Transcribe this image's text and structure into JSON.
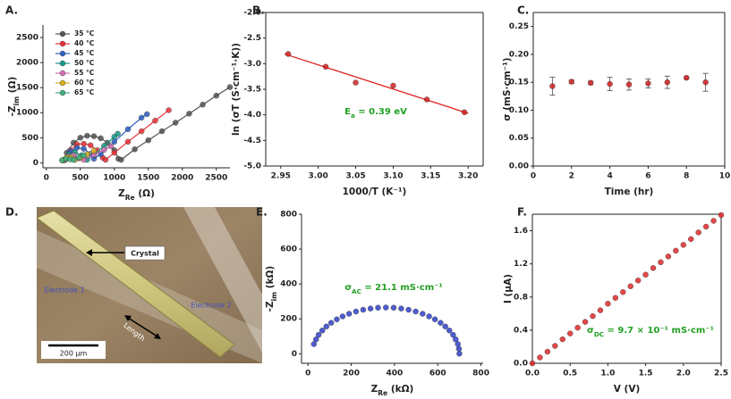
{
  "chart_data": [
    {
      "panel": "A.",
      "type": "line",
      "xlabel": [
        "Z",
        "Re",
        " (Ω)"
      ],
      "ylabel": [
        "-Z",
        "im",
        " (Ω)"
      ],
      "xlim": [
        -50,
        2700
      ],
      "ylim": [
        -100,
        2750
      ],
      "xticks": [
        0,
        500,
        1000,
        1500,
        2000,
        2500
      ],
      "yticks": [
        0,
        500,
        1000,
        1500,
        2000,
        2500
      ],
      "frame": "open",
      "legend": "upper left",
      "series": [
        {
          "name": "35 °C",
          "color": "#555555",
          "x": [
            260,
            300,
            400,
            500,
            600,
            700,
            800,
            900,
            1000,
            1060,
            1100,
            1300,
            1500,
            1700,
            1900,
            2100,
            2300,
            2500,
            2700
          ],
          "values": [
            60,
            200,
            400,
            500,
            540,
            530,
            490,
            400,
            250,
            80,
            60,
            270,
            450,
            630,
            800,
            980,
            1160,
            1340,
            1510
          ]
        },
        {
          "name": "40 °C",
          "color": "#e8333a",
          "x": [
            280,
            350,
            450,
            550,
            650,
            750,
            830,
            870,
            1000,
            1200,
            1400,
            1600,
            1800
          ],
          "values": [
            60,
            250,
            370,
            380,
            350,
            250,
            100,
            60,
            200,
            420,
            630,
            840,
            1050
          ]
        },
        {
          "name": "45 °C",
          "color": "#3060c0",
          "x": [
            270,
            350,
            450,
            550,
            650,
            700,
            800,
            1000,
            1200,
            1400,
            1480
          ],
          "values": [
            60,
            230,
            300,
            280,
            180,
            80,
            170,
            420,
            670,
            900,
            970
          ]
        },
        {
          "name": "50 °C",
          "color": "#1a9a8a",
          "x": [
            260,
            330,
            420,
            520,
            600,
            700,
            850,
            1000,
            1050
          ],
          "values": [
            50,
            170,
            210,
            150,
            60,
            160,
            340,
            520,
            580
          ]
        },
        {
          "name": "55 °C",
          "color": "#d070b0",
          "x": [
            250,
            320,
            400,
            480,
            550,
            700,
            850,
            950
          ],
          "values": [
            50,
            130,
            150,
            90,
            60,
            160,
            260,
            330
          ]
        },
        {
          "name": "60 °C",
          "color": "#d4b020",
          "x": [
            240,
            300,
            360,
            420,
            500,
            600,
            700
          ],
          "values": [
            50,
            110,
            110,
            60,
            100,
            170,
            240
          ]
        },
        {
          "name": "65 °C",
          "color": "#40b080",
          "x": [
            230,
            290,
            350,
            400,
            480,
            550
          ],
          "values": [
            50,
            80,
            70,
            60,
            110,
            150
          ]
        }
      ]
    },
    {
      "panel": "B.",
      "type": "scatter",
      "xlabel": "1000/T (K⁻¹)",
      "ylabel": "ln (σT (S·cm⁻¹·K))",
      "xlim": [
        2.93,
        3.22
      ],
      "ylim": [
        -5,
        -2
      ],
      "xticks": [
        2.95,
        {
          "value": 3,
          "label": "3.00"
        },
        3.05,
        {
          "value": 3.1,
          "label": "3.10"
        },
        3.15,
        {
          "value": 3.2,
          "label": "3.20"
        }
      ],
      "yticks": [
        {
          "value": -2,
          "label": "-2.0"
        },
        -2.5,
        {
          "value": -3,
          "label": "-3.0"
        },
        -3.5,
        {
          "value": -4,
          "label": "-4.0"
        },
        -4.5,
        {
          "value": -5,
          "label": "-5.0"
        }
      ],
      "frame": "box",
      "annotation": [
        "E",
        "a",
        " = 0.39 eV"
      ],
      "annotation_color": "#22a022",
      "fit": {
        "color": "#e02020",
        "x": [
          2.955,
          3.2
        ],
        "values": [
          -2.81,
          -3.97
        ]
      },
      "series": [
        {
          "color": "#d02020",
          "x": [
            2.96,
            3.01,
            3.05,
            3.1,
            3.145,
            3.195
          ],
          "values": [
            -2.81,
            -3.06,
            -3.37,
            -3.43,
            -3.7,
            -3.95
          ]
        }
      ]
    },
    {
      "panel": "C.",
      "type": "scatter",
      "xlabel": "Time (hr)",
      "ylabel": "σ (mS·cm⁻¹)",
      "xlim": [
        0,
        10
      ],
      "ylim": [
        0,
        0.275
      ],
      "xticks": [
        0,
        2,
        4,
        6,
        8,
        10
      ],
      "yticks": [
        {
          "value": 0,
          "label": "0.00"
        },
        0.05,
        {
          "value": 0.1,
          "label": "0.10"
        },
        0.15,
        {
          "value": 0.2,
          "label": "0.20"
        },
        0.25
      ],
      "frame": "box",
      "series": [
        {
          "color": "#d02020",
          "x": [
            1,
            2,
            3,
            4,
            5,
            6,
            7,
            8,
            9
          ],
          "values": [
            0.143,
            0.151,
            0.149,
            0.147,
            0.146,
            0.148,
            0.15,
            0.158,
            0.15
          ],
          "errors": [
            0.016,
            0.003,
            0.003,
            0.012,
            0.01,
            0.008,
            0.011,
            0.002,
            0.016
          ]
        }
      ]
    },
    {
      "panel": "E.",
      "type": "scatter",
      "xlabel": [
        "Z",
        "Re",
        " (kΩ)"
      ],
      "ylabel": [
        "-Z",
        "im",
        " (kΩ)"
      ],
      "xlim": [
        -30,
        810
      ],
      "ylim": [
        -55,
        800
      ],
      "xticks": [
        0,
        200,
        400,
        600,
        800
      ],
      "yticks": [
        0,
        200,
        400,
        600,
        800
      ],
      "frame": "open",
      "annotation": [
        "σ",
        "AC",
        " = 21.1 mS·cm⁻¹"
      ],
      "annotation_color": "#22a022",
      "series": [
        {
          "color": "#3040c8",
          "x": [
            27,
            37,
            49,
            66,
            85,
            107,
            133,
            160,
            190,
            222,
            255,
            289,
            324,
            360,
            396,
            431,
            465,
            498,
            530,
            560,
            587,
            613,
            635,
            654,
            671,
            683,
            693,
            698,
            700
          ],
          "values": [
            55,
            82,
            108,
            133,
            156,
            177,
            197,
            214,
            229,
            242,
            252,
            259,
            264,
            265,
            264,
            259,
            252,
            242,
            229,
            214,
            197,
            177,
            156,
            133,
            108,
            82,
            55,
            28,
            0
          ]
        }
      ]
    },
    {
      "panel": "F.",
      "type": "scatter",
      "xlabel": "V (V)",
      "ylabel": "I (µA)",
      "xlim": [
        0,
        2.5
      ],
      "ylim": [
        0,
        1.8
      ],
      "xticks": [
        {
          "value": 0,
          "label": "0.0"
        },
        0.5,
        {
          "value": 1,
          "label": "1.0"
        },
        1.5,
        {
          "value": 2,
          "label": "2.0"
        },
        2.5
      ],
      "yticks": [
        {
          "value": 0,
          "label": "0.0"
        },
        0.4,
        0.8,
        1.2,
        1.6
      ],
      "frame": "box",
      "annotation": [
        "σ",
        "DC",
        " = 9.7 × 10⁻¹ mS·cm⁻¹"
      ],
      "annotation_color": "#22a022",
      "series": [
        {
          "color": "#e02828",
          "x": [
            0,
            0.1,
            0.2,
            0.3,
            0.4,
            0.5,
            0.6,
            0.7,
            0.8,
            0.9,
            1,
            1.1,
            1.2,
            1.3,
            1.4,
            1.5,
            1.6,
            1.7,
            1.8,
            1.9,
            2,
            2.1,
            2.2,
            2.3,
            2.4,
            2.5
          ],
          "values": [
            0,
            0.07,
            0.14,
            0.21,
            0.29,
            0.36,
            0.43,
            0.5,
            0.57,
            0.64,
            0.72,
            0.79,
            0.86,
            0.93,
            1,
            1.07,
            1.15,
            1.22,
            1.29,
            1.36,
            1.43,
            1.5,
            1.58,
            1.65,
            1.72,
            1.79
          ]
        }
      ]
    }
  ],
  "photo": {
    "panel": "D.",
    "crystal": "Crystal",
    "electrode_1": "Electrode 1",
    "electrode_2": "Electrode 2",
    "length": "Length",
    "scale_bar": "200 µm"
  }
}
